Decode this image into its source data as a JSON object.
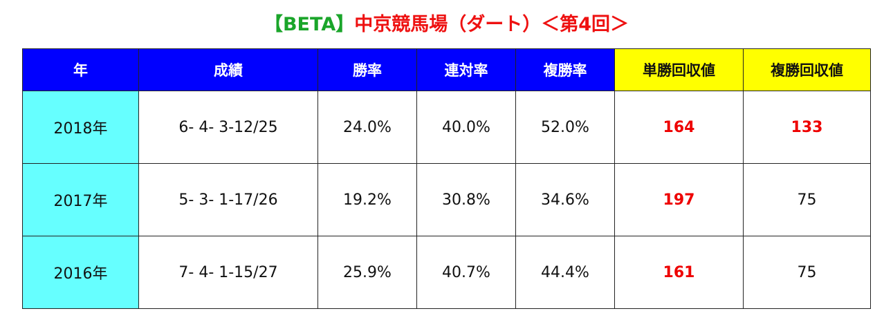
{
  "header": {
    "title_prefix": "【BETA】",
    "title_main": "中京競馬場（ダート）＜第4回＞"
  },
  "table": {
    "columns": [
      "年",
      "成績",
      "勝率",
      "連対率",
      "複勝率",
      "単勝回収値",
      "複勝回収値"
    ],
    "rows": [
      [
        "2018年",
        "6- 4- 3-12/25",
        "24.0%",
        "40.0%",
        "52.0%",
        "164",
        "133"
      ],
      [
        "2017年",
        "5- 3- 1-17/26",
        "19.2%",
        "30.8%",
        "34.6%",
        "197",
        "75"
      ],
      [
        "2016年",
        "7- 4- 1-15/27",
        "25.9%",
        "40.7%",
        "44.4%",
        "161",
        "75"
      ]
    ]
  }
}
